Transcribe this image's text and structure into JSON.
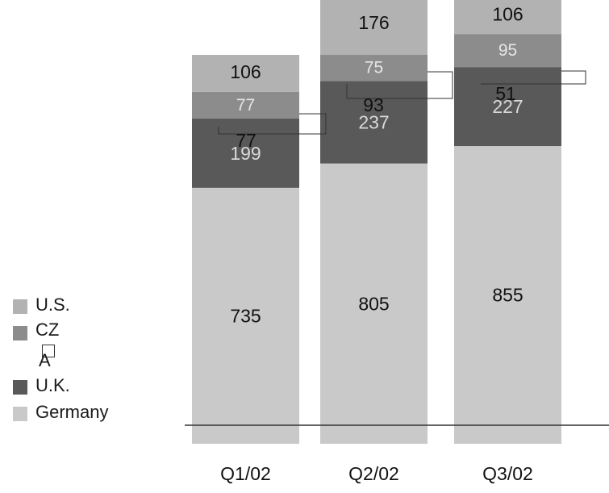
{
  "chart_data": {
    "type": "bar",
    "stacked": true,
    "categories": [
      "Q1/02",
      "Q2/02",
      "Q3/02"
    ],
    "series": [
      {
        "name": "Germany",
        "values": [
          735,
          805,
          855
        ],
        "color": "#c9c9c9",
        "label_color": "#111111"
      },
      {
        "name": "U.K.",
        "values": [
          199,
          237,
          227
        ],
        "color": "#595959",
        "label_color": "#d9d9d9"
      },
      {
        "name": "CZ A",
        "values": [
          77,
          75,
          95
        ],
        "color": "#8c8c8c",
        "label_color": "#e6e6e6"
      },
      {
        "name": "U.S.",
        "values": [
          106,
          176,
          106
        ],
        "color": "#b2b2b2",
        "label_color": "#111111"
      }
    ],
    "callouts": [
      "77",
      "93",
      "51"
    ],
    "legend": {
      "position": "left",
      "items": [
        {
          "label": "U.S.",
          "color": "#b2b2b2"
        },
        {
          "label": "CZ",
          "sublabel": "A",
          "color": "#8c8c8c"
        },
        {
          "label": "U.K.",
          "color": "#595959"
        },
        {
          "label": "Germany",
          "color": "#c9c9c9"
        }
      ]
    },
    "title": "",
    "xlabel": "",
    "ylabel": "",
    "ylim": [
      0,
      1250
    ],
    "grid": false
  }
}
